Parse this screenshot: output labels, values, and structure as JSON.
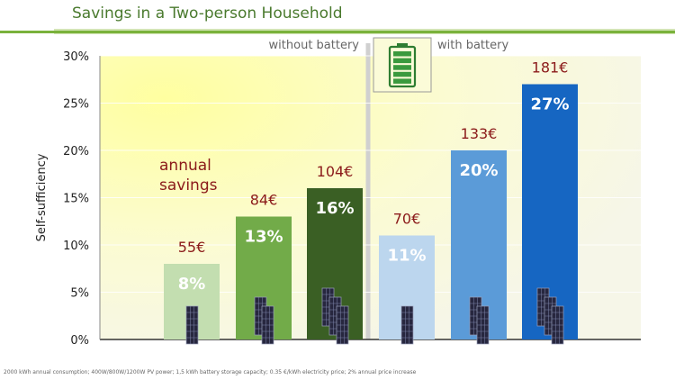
{
  "header": {
    "title": "Savings in a Two-person Household"
  },
  "footnote": "2000 kWh annual consumption; 400W/800W/1200W PV power; 1,5 kWh battery storage capacity; 0.35 €/kWh electricity price; 2% annual price increase",
  "colors": {
    "accent": "#7ab23c",
    "title": "#4a7a2e",
    "savings_text": "#8b1a1a"
  },
  "chart_data": {
    "type": "bar",
    "ylabel": "Self-sufficiency",
    "ylim": [
      0,
      30
    ],
    "yticks": [
      0,
      5,
      10,
      15,
      20,
      25,
      30
    ],
    "ytick_labels": [
      "0%",
      "5%",
      "10%",
      "15%",
      "20%",
      "25%",
      "30%"
    ],
    "group_labels": [
      "without battery",
      "with battery"
    ],
    "annotation": "annual\nsavings",
    "icon": "battery-icon",
    "bars": [
      {
        "group": "without battery",
        "panels": 1,
        "value": 8,
        "label": "8%",
        "savings": "55€",
        "color": "#c3deb0"
      },
      {
        "group": "without battery",
        "panels": 2,
        "value": 13,
        "label": "13%",
        "savings": "84€",
        "color": "#72ab49"
      },
      {
        "group": "without battery",
        "panels": 3,
        "value": 16,
        "label": "16%",
        "savings": "104€",
        "color": "#3a5f24"
      },
      {
        "group": "with battery",
        "panels": 1,
        "value": 11,
        "label": "11%",
        "savings": "70€",
        "color": "#bcd6ee"
      },
      {
        "group": "with battery",
        "panels": 2,
        "value": 20,
        "label": "20%",
        "savings": "133€",
        "color": "#5b9bd8"
      },
      {
        "group": "with battery",
        "panels": 3,
        "value": 27,
        "label": "27%",
        "savings": "181€",
        "color": "#1666c2"
      }
    ]
  }
}
